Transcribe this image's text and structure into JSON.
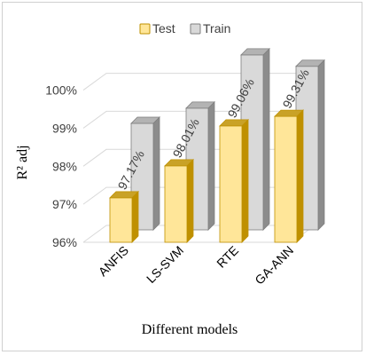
{
  "chart_data": {
    "type": "bar",
    "title": "",
    "xlabel": "Different models",
    "ylabel": "R² adj",
    "categories": [
      "ANFIS",
      "LS-SVM",
      "RTE",
      "GA-ANN"
    ],
    "series": [
      {
        "name": "Test",
        "values": [
          97.17,
          98.01,
          99.06,
          99.31
        ]
      },
      {
        "name": "Train",
        "values": [
          98.8,
          99.2,
          100.6,
          100.3
        ]
      }
    ],
    "data_labels": [
      "97.17%",
      "98.01%",
      "99.06%",
      "99.31%"
    ],
    "y_ticks": [
      "96%",
      "97%",
      "98%",
      "99%",
      "100%"
    ],
    "ylim": [
      96,
      100.9
    ],
    "legend": {
      "position": "top",
      "entries": [
        "Test",
        "Train"
      ]
    },
    "grid": true,
    "style": "3d",
    "colors": {
      "test_face": "#ffe699",
      "test_top": "#c9a227",
      "test_side": "#bf9000",
      "test_edge": "#bf9000",
      "train_face": "#d9d9d9",
      "train_top": "#b3b3b3",
      "train_side": "#8c8c8c",
      "train_edge": "#7f7f7f",
      "grid": "#d9d9d9"
    }
  }
}
